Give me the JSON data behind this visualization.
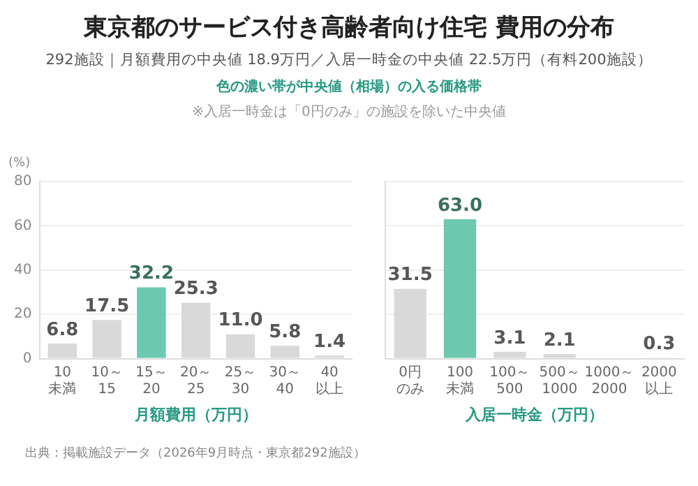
{
  "chart_data": [
    {
      "type": "bar",
      "title": "東京都のサービス付き高齢者向け住宅 費用の分布",
      "subtitle": "292施設｜月額費用の中央値 18.9万円／入居一時金の中央値 22.5万円（有料200施設）",
      "annotations": [
        "色の濃い帯が中央値（相場）の入る価格帯",
        "※入居一時金は「0円のみ」の施設を除いた中央値",
        "出典：掲載施設データ（2026年9月時点・東京都292施設）"
      ],
      "ylabel": "(%)",
      "xlabel": "月額費用（万円）",
      "categories": [
        "10未満",
        "10～15",
        "15～20",
        "20～25",
        "25～30",
        "30～40",
        "40以上"
      ],
      "values": [
        6.8,
        17.5,
        32.2,
        25.3,
        11.0,
        5.8,
        1.4
      ],
      "colors": [
        "#d9d9d9",
        "#d9d9d9",
        "#6cc9b0",
        "#d9d9d9",
        "#d9d9d9",
        "#d9d9d9",
        "#d9d9d9"
      ],
      "value_labels": [
        "6.8",
        "17.5",
        "32.2",
        "25.3",
        "11.0",
        "5.8",
        "1.4"
      ],
      "ylim": [
        0,
        80
      ],
      "yticks": [
        0,
        20,
        40,
        60,
        80
      ],
      "grid": "y",
      "legend": false
    },
    {
      "type": "bar",
      "xlabel": "入居一時金（万円）",
      "categories": [
        "0円のみ",
        "100未満",
        "100～500",
        "500～1000",
        "1000～2000",
        "2000以上"
      ],
      "values": [
        31.5,
        63.0,
        3.1,
        2.1,
        0,
        0.3
      ],
      "value_labels": [
        "31.5",
        "63.0",
        "3.1",
        "2.1",
        null,
        "0.3"
      ],
      "colors": [
        "#d9d9d9",
        "#6cc9b0",
        "#d9d9d9",
        "#d9d9d9",
        "#d9d9d9",
        "#d9d9d9"
      ],
      "ylim": [
        0,
        80
      ],
      "yticks": [
        0,
        20,
        40,
        60,
        80
      ],
      "grid": "y",
      "legend": false,
      "tick_labels": "x"
    }
  ]
}
